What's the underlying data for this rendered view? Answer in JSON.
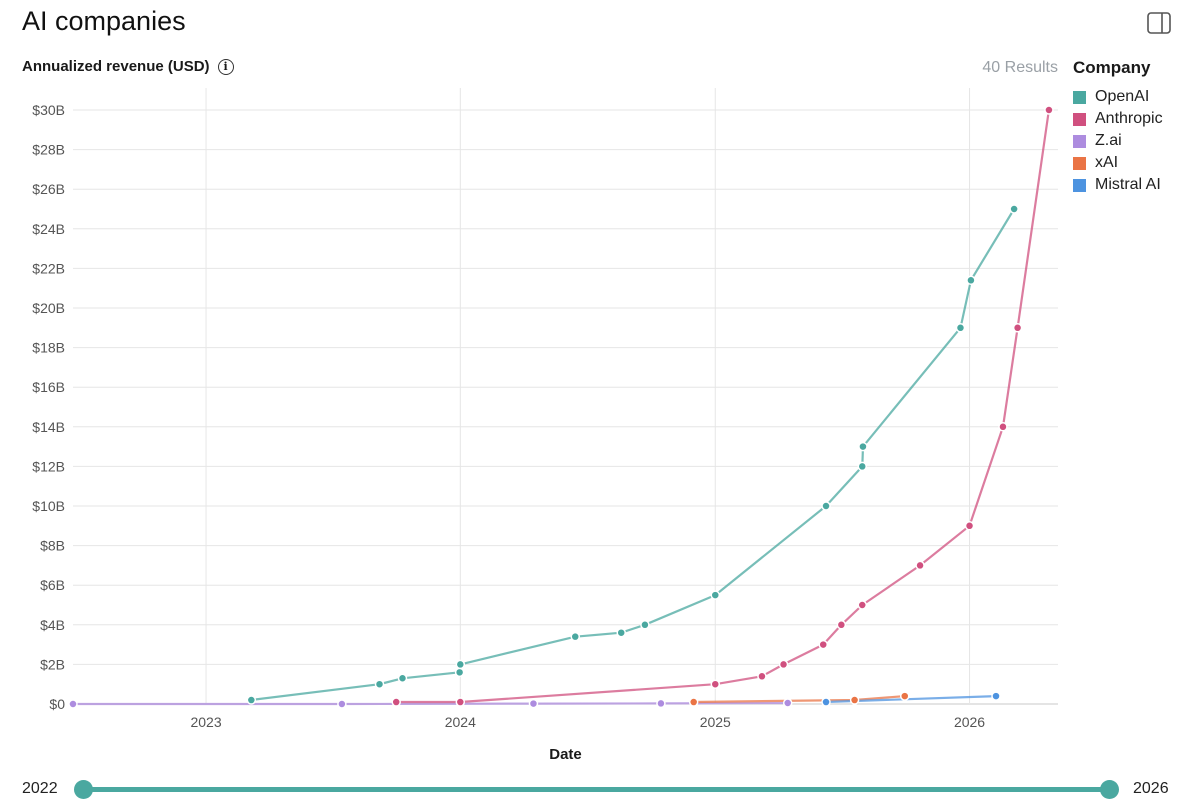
{
  "page": {
    "title": "AI companies",
    "metric_label": "Annualized revenue (USD)",
    "results_text": "40 Results"
  },
  "legend": {
    "title": "Company",
    "items": [
      {
        "label": "OpenAI",
        "color": "#4aa8a0"
      },
      {
        "label": "Anthropic",
        "color": "#d0507f"
      },
      {
        "label": "Z.ai",
        "color": "#ad8cdf"
      },
      {
        "label": "xAI",
        "color": "#ea7445"
      },
      {
        "label": "Mistral AI",
        "color": "#4d93e0"
      }
    ]
  },
  "slider": {
    "start_label": "2022",
    "end_label": "2026",
    "range": [
      2022,
      2026
    ]
  },
  "icons": {
    "panel_toggle": "panel-toggle-icon",
    "info": "info-icon"
  },
  "chart_data": {
    "type": "line",
    "title": "",
    "xlabel": "Date",
    "ylabel": "Annualized revenue (USD)",
    "x_ticks": [
      "2023",
      "2024",
      "2025",
      "2026"
    ],
    "y_ticks": [
      "$0",
      "$2B",
      "$4B",
      "$6B",
      "$8B",
      "$10B",
      "$12B",
      "$14B",
      "$16B",
      "$18B",
      "$20B",
      "$22B",
      "$24B",
      "$26B",
      "$28B",
      "$30B"
    ],
    "xlim": [
      "2022-06-24",
      "2026-05-08"
    ],
    "ylim": [
      0,
      30
    ],
    "y_unit": "billion USD",
    "grid": true,
    "legend_position": "right",
    "series": [
      {
        "name": "OpenAI",
        "color": "#4aa8a0",
        "points": [
          {
            "x": "2023-03-07",
            "y": 0.2
          },
          {
            "x": "2023-09-07",
            "y": 1.0
          },
          {
            "x": "2023-10-10",
            "y": 1.3
          },
          {
            "x": "2023-12-31",
            "y": 1.6
          },
          {
            "x": "2024-01-01",
            "y": 2.0
          },
          {
            "x": "2024-06-14",
            "y": 3.4
          },
          {
            "x": "2024-08-19",
            "y": 3.6
          },
          {
            "x": "2024-09-22",
            "y": 4.0
          },
          {
            "x": "2025-01-01",
            "y": 5.5
          },
          {
            "x": "2025-06-09",
            "y": 10.0
          },
          {
            "x": "2025-07-31",
            "y": 12.0
          },
          {
            "x": "2025-08-01",
            "y": 13.0
          },
          {
            "x": "2025-12-19",
            "y": 19.0
          },
          {
            "x": "2026-01-03",
            "y": 21.4
          },
          {
            "x": "2026-03-06",
            "y": 25.0
          }
        ]
      },
      {
        "name": "Anthropic",
        "color": "#d0507f",
        "points": [
          {
            "x": "2023-10-01",
            "y": 0.1
          },
          {
            "x": "2024-01-01",
            "y": 0.1
          },
          {
            "x": "2025-01-01",
            "y": 1.0
          },
          {
            "x": "2025-03-09",
            "y": 1.4
          },
          {
            "x": "2025-04-09",
            "y": 2.0
          },
          {
            "x": "2025-06-05",
            "y": 3.0
          },
          {
            "x": "2025-07-01",
            "y": 4.0
          },
          {
            "x": "2025-07-31",
            "y": 5.0
          },
          {
            "x": "2025-10-22",
            "y": 7.0
          },
          {
            "x": "2026-01-01",
            "y": 9.0
          },
          {
            "x": "2026-02-18",
            "y": 14.0
          },
          {
            "x": "2026-03-11",
            "y": 19.0
          },
          {
            "x": "2026-04-25",
            "y": 30.0
          }
        ]
      },
      {
        "name": "Z.ai",
        "color": "#ad8cdf",
        "points": [
          {
            "x": "2022-06-24",
            "y": 0.0
          },
          {
            "x": "2023-07-15",
            "y": 0.0
          },
          {
            "x": "2024-04-15",
            "y": 0.02
          },
          {
            "x": "2024-10-15",
            "y": 0.03
          },
          {
            "x": "2025-04-15",
            "y": 0.05
          }
        ]
      },
      {
        "name": "xAI",
        "color": "#ea7445",
        "points": [
          {
            "x": "2024-12-01",
            "y": 0.1
          },
          {
            "x": "2025-07-20",
            "y": 0.2
          },
          {
            "x": "2025-09-30",
            "y": 0.4
          }
        ]
      },
      {
        "name": "Mistral AI",
        "color": "#4d93e0",
        "points": [
          {
            "x": "2025-06-09",
            "y": 0.1
          },
          {
            "x": "2026-02-08",
            "y": 0.4
          }
        ]
      }
    ]
  }
}
